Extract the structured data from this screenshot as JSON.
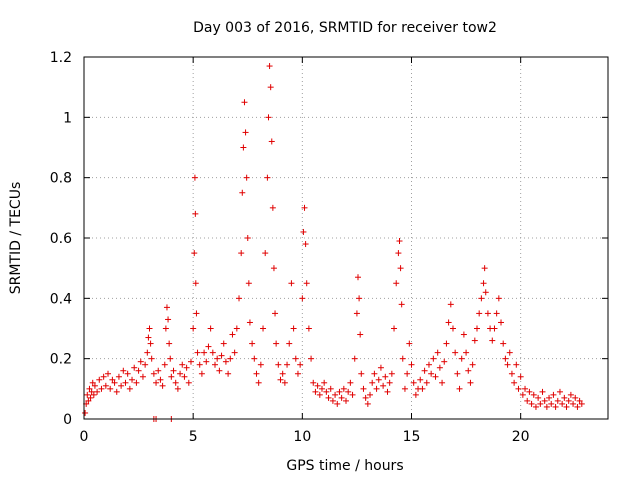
{
  "chart_data": {
    "type": "scatter",
    "title": "Day 003 of 2016, SRMTID for receiver tow2",
    "xlabel": "GPS time / hours",
    "ylabel": "SRMTID / TECUs",
    "xlim": [
      0,
      24
    ],
    "ylim": [
      0,
      1.2
    ],
    "x_ticks": [
      0,
      5,
      10,
      15,
      20
    ],
    "y_ticks": [
      0,
      0.2,
      0.4,
      0.6,
      0.8,
      1,
      1.2
    ],
    "x_tick_labels": [
      "0",
      "5",
      "10",
      "15",
      "20"
    ],
    "y_tick_labels": [
      "0",
      "0.2",
      "0.4",
      "0.6",
      "0.8",
      "1",
      "1.2"
    ],
    "grid": true,
    "marker": "+",
    "color": "#e00000",
    "series": [
      {
        "name": "SRMTID",
        "points": [
          [
            0.05,
            0.02
          ],
          [
            0.1,
            0.05
          ],
          [
            0.15,
            0.08
          ],
          [
            0.2,
            0.06
          ],
          [
            0.25,
            0.1
          ],
          [
            0.3,
            0.07
          ],
          [
            0.35,
            0.09
          ],
          [
            0.4,
            0.12
          ],
          [
            0.45,
            0.08
          ],
          [
            0.5,
            0.11
          ],
          [
            0.6,
            0.09
          ],
          [
            0.7,
            0.13
          ],
          [
            0.8,
            0.1
          ],
          [
            0.9,
            0.14
          ],
          [
            1.0,
            0.11
          ],
          [
            1.1,
            0.15
          ],
          [
            1.2,
            0.1
          ],
          [
            1.3,
            0.13
          ],
          [
            1.4,
            0.12
          ],
          [
            1.5,
            0.09
          ],
          [
            1.6,
            0.14
          ],
          [
            1.7,
            0.11
          ],
          [
            1.8,
            0.16
          ],
          [
            1.9,
            0.12
          ],
          [
            2.0,
            0.15
          ],
          [
            2.1,
            0.1
          ],
          [
            2.2,
            0.13
          ],
          [
            2.3,
            0.17
          ],
          [
            2.4,
            0.12
          ],
          [
            2.5,
            0.16
          ],
          [
            2.6,
            0.19
          ],
          [
            2.7,
            0.14
          ],
          [
            2.8,
            0.18
          ],
          [
            2.9,
            0.22
          ],
          [
            2.95,
            0.27
          ],
          [
            3.0,
            0.3
          ],
          [
            3.05,
            0.25
          ],
          [
            3.1,
            0.2
          ],
          [
            3.2,
            0.15
          ],
          [
            3.3,
            0.12
          ],
          [
            3.4,
            0.16
          ],
          [
            3.5,
            0.13
          ],
          [
            3.6,
            0.11
          ],
          [
            3.7,
            0.18
          ],
          [
            3.75,
            0.3
          ],
          [
            3.8,
            0.37
          ],
          [
            3.85,
            0.33
          ],
          [
            3.9,
            0.25
          ],
          [
            3.95,
            0.2
          ],
          [
            4.0,
            0.14
          ],
          [
            4.1,
            0.16
          ],
          [
            4.2,
            0.12
          ],
          [
            4.3,
            0.1
          ],
          [
            4.4,
            0.15
          ],
          [
            4.5,
            0.18
          ],
          [
            4.6,
            0.14
          ],
          [
            4.7,
            0.17
          ],
          [
            4.8,
            0.12
          ],
          [
            4.9,
            0.19
          ],
          [
            5.0,
            0.3
          ],
          [
            5.05,
            0.55
          ],
          [
            5.08,
            0.8
          ],
          [
            5.1,
            0.68
          ],
          [
            5.12,
            0.45
          ],
          [
            5.15,
            0.35
          ],
          [
            5.2,
            0.22
          ],
          [
            5.3,
            0.18
          ],
          [
            5.4,
            0.15
          ],
          [
            5.5,
            0.22
          ],
          [
            5.6,
            0.19
          ],
          [
            5.7,
            0.24
          ],
          [
            5.8,
            0.3
          ],
          [
            5.9,
            0.22
          ],
          [
            6.0,
            0.18
          ],
          [
            6.1,
            0.2
          ],
          [
            6.2,
            0.16
          ],
          [
            6.3,
            0.21
          ],
          [
            6.4,
            0.25
          ],
          [
            6.5,
            0.19
          ],
          [
            6.6,
            0.15
          ],
          [
            6.7,
            0.2
          ],
          [
            6.8,
            0.28
          ],
          [
            6.9,
            0.22
          ],
          [
            7.0,
            0.3
          ],
          [
            7.1,
            0.4
          ],
          [
            7.2,
            0.55
          ],
          [
            7.25,
            0.75
          ],
          [
            7.3,
            0.9
          ],
          [
            7.35,
            1.05
          ],
          [
            7.4,
            0.95
          ],
          [
            7.45,
            0.8
          ],
          [
            7.5,
            0.6
          ],
          [
            7.55,
            0.45
          ],
          [
            7.6,
            0.32
          ],
          [
            7.7,
            0.25
          ],
          [
            7.8,
            0.2
          ],
          [
            7.9,
            0.15
          ],
          [
            8.0,
            0.12
          ],
          [
            8.1,
            0.18
          ],
          [
            8.2,
            0.3
          ],
          [
            8.3,
            0.55
          ],
          [
            8.4,
            0.8
          ],
          [
            8.45,
            1.0
          ],
          [
            8.5,
            1.17
          ],
          [
            8.55,
            1.1
          ],
          [
            8.6,
            0.92
          ],
          [
            8.65,
            0.7
          ],
          [
            8.7,
            0.5
          ],
          [
            8.75,
            0.35
          ],
          [
            8.8,
            0.25
          ],
          [
            8.9,
            0.18
          ],
          [
            9.0,
            0.13
          ],
          [
            9.1,
            0.15
          ],
          [
            9.2,
            0.12
          ],
          [
            9.3,
            0.18
          ],
          [
            9.4,
            0.25
          ],
          [
            9.5,
            0.45
          ],
          [
            9.6,
            0.3
          ],
          [
            9.7,
            0.2
          ],
          [
            9.8,
            0.15
          ],
          [
            9.9,
            0.18
          ],
          [
            10.0,
            0.4
          ],
          [
            10.05,
            0.62
          ],
          [
            10.1,
            0.7
          ],
          [
            10.15,
            0.58
          ],
          [
            10.2,
            0.45
          ],
          [
            10.3,
            0.3
          ],
          [
            10.4,
            0.2
          ],
          [
            10.5,
            0.12
          ],
          [
            10.6,
            0.09
          ],
          [
            10.7,
            0.11
          ],
          [
            10.8,
            0.08
          ],
          [
            10.9,
            0.1
          ],
          [
            11.0,
            0.12
          ],
          [
            11.1,
            0.09
          ],
          [
            11.2,
            0.07
          ],
          [
            11.3,
            0.1
          ],
          [
            11.4,
            0.06
          ],
          [
            11.5,
            0.08
          ],
          [
            11.6,
            0.05
          ],
          [
            11.7,
            0.09
          ],
          [
            11.8,
            0.07
          ],
          [
            11.9,
            0.1
          ],
          [
            12.0,
            0.06
          ],
          [
            12.1,
            0.09
          ],
          [
            12.2,
            0.12
          ],
          [
            12.3,
            0.08
          ],
          [
            12.4,
            0.2
          ],
          [
            12.5,
            0.35
          ],
          [
            12.55,
            0.47
          ],
          [
            12.6,
            0.4
          ],
          [
            12.65,
            0.28
          ],
          [
            12.7,
            0.15
          ],
          [
            12.8,
            0.1
          ],
          [
            12.9,
            0.07
          ],
          [
            13.0,
            0.05
          ],
          [
            13.1,
            0.08
          ],
          [
            13.2,
            0.12
          ],
          [
            13.3,
            0.15
          ],
          [
            13.4,
            0.1
          ],
          [
            13.5,
            0.13
          ],
          [
            13.6,
            0.17
          ],
          [
            13.7,
            0.11
          ],
          [
            13.8,
            0.14
          ],
          [
            13.9,
            0.09
          ],
          [
            14.0,
            0.12
          ],
          [
            14.1,
            0.15
          ],
          [
            14.2,
            0.3
          ],
          [
            14.3,
            0.45
          ],
          [
            14.4,
            0.55
          ],
          [
            14.45,
            0.59
          ],
          [
            14.5,
            0.5
          ],
          [
            14.55,
            0.38
          ],
          [
            14.6,
            0.2
          ],
          [
            14.7,
            0.1
          ],
          [
            14.8,
            0.15
          ],
          [
            14.9,
            0.25
          ],
          [
            15.0,
            0.18
          ],
          [
            15.1,
            0.12
          ],
          [
            15.2,
            0.08
          ],
          [
            15.3,
            0.1
          ],
          [
            15.4,
            0.13
          ],
          [
            15.5,
            0.1
          ],
          [
            15.6,
            0.16
          ],
          [
            15.7,
            0.12
          ],
          [
            15.8,
            0.18
          ],
          [
            15.9,
            0.15
          ],
          [
            16.0,
            0.2
          ],
          [
            16.1,
            0.14
          ],
          [
            16.2,
            0.22
          ],
          [
            16.3,
            0.17
          ],
          [
            16.4,
            0.12
          ],
          [
            16.5,
            0.19
          ],
          [
            16.6,
            0.25
          ],
          [
            16.7,
            0.32
          ],
          [
            16.8,
            0.38
          ],
          [
            16.9,
            0.3
          ],
          [
            17.0,
            0.22
          ],
          [
            17.1,
            0.15
          ],
          [
            17.2,
            0.1
          ],
          [
            17.3,
            0.2
          ],
          [
            17.4,
            0.28
          ],
          [
            17.5,
            0.22
          ],
          [
            17.6,
            0.16
          ],
          [
            17.7,
            0.12
          ],
          [
            17.8,
            0.18
          ],
          [
            17.9,
            0.26
          ],
          [
            18.0,
            0.3
          ],
          [
            18.1,
            0.35
          ],
          [
            18.2,
            0.4
          ],
          [
            18.3,
            0.45
          ],
          [
            18.35,
            0.5
          ],
          [
            18.4,
            0.42
          ],
          [
            18.5,
            0.35
          ],
          [
            18.6,
            0.3
          ],
          [
            18.7,
            0.26
          ],
          [
            18.8,
            0.3
          ],
          [
            18.9,
            0.35
          ],
          [
            19.0,
            0.4
          ],
          [
            19.1,
            0.32
          ],
          [
            19.2,
            0.25
          ],
          [
            19.3,
            0.2
          ],
          [
            19.4,
            0.18
          ],
          [
            19.5,
            0.22
          ],
          [
            19.6,
            0.15
          ],
          [
            19.7,
            0.12
          ],
          [
            19.8,
            0.18
          ],
          [
            19.9,
            0.1
          ],
          [
            20.0,
            0.14
          ],
          [
            20.1,
            0.08
          ],
          [
            20.2,
            0.1
          ],
          [
            20.3,
            0.06
          ],
          [
            20.4,
            0.09
          ],
          [
            20.5,
            0.05
          ],
          [
            20.6,
            0.08
          ],
          [
            20.7,
            0.04
          ],
          [
            20.8,
            0.07
          ],
          [
            20.9,
            0.05
          ],
          [
            21.0,
            0.09
          ],
          [
            21.1,
            0.06
          ],
          [
            21.2,
            0.04
          ],
          [
            21.3,
            0.07
          ],
          [
            21.4,
            0.05
          ],
          [
            21.5,
            0.08
          ],
          [
            21.6,
            0.04
          ],
          [
            21.7,
            0.06
          ],
          [
            21.8,
            0.09
          ],
          [
            21.9,
            0.05
          ],
          [
            22.0,
            0.07
          ],
          [
            22.1,
            0.04
          ],
          [
            22.2,
            0.06
          ],
          [
            22.3,
            0.08
          ],
          [
            22.4,
            0.05
          ],
          [
            22.5,
            0.07
          ],
          [
            22.6,
            0.04
          ],
          [
            22.7,
            0.06
          ],
          [
            22.8,
            0.05
          ],
          [
            3.2,
            0.0
          ],
          [
            3.3,
            0.0
          ],
          [
            4.0,
            0.0
          ]
        ]
      }
    ]
  }
}
